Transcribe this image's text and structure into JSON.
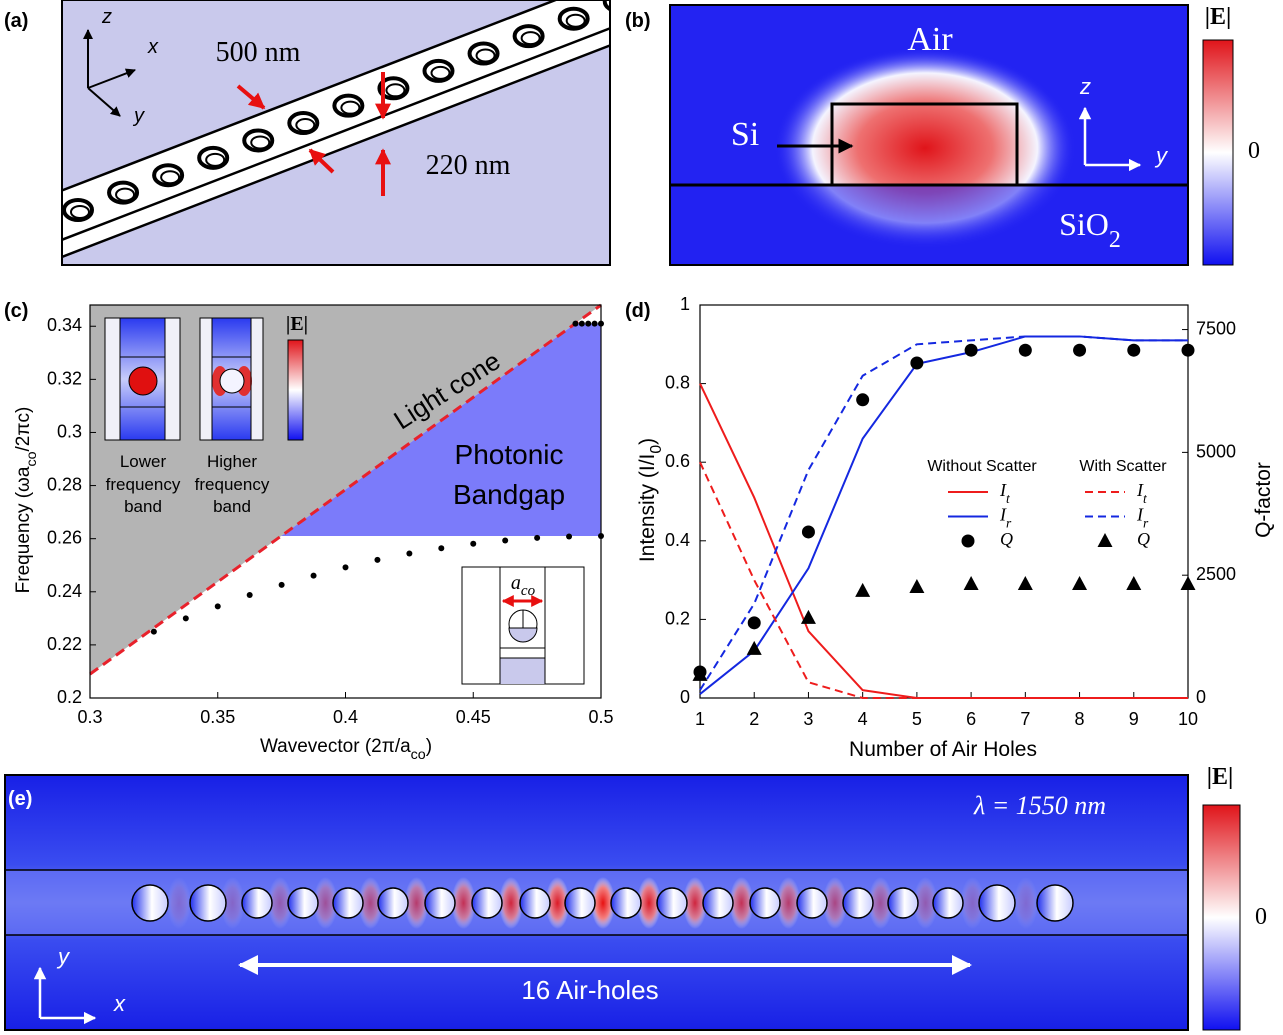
{
  "panel_labels": [
    "(a)",
    "(b)",
    "(c)",
    "(d)",
    "(e)"
  ],
  "panel_a": {
    "axes": [
      "z",
      "x",
      "y"
    ],
    "width_label": "500 nm",
    "height_label": "220 nm"
  },
  "panel_b": {
    "air": "Air",
    "si": "Si",
    "substrate": "SiO_{2}",
    "colorbar_title": "|E|",
    "colorbar_mid": "0",
    "axes": [
      "z",
      "y"
    ]
  },
  "chart_data": [
    {
      "type": "band-diagram",
      "xlabel": "Wavevector (2π/a_{co})",
      "ylabel": "Frequency (ωa_{co}/2πc)",
      "xlim": [
        0.3,
        0.5
      ],
      "ylim": [
        0.2,
        0.348
      ],
      "xticks": [
        0.3,
        0.35,
        0.4,
        0.45,
        0.5
      ],
      "yticks": [
        0.2,
        0.22,
        0.24,
        0.26,
        0.28,
        0.3,
        0.32,
        0.34
      ],
      "light_cone": {
        "label": "Light cone",
        "color": "#e8212b",
        "x": [
          0.3,
          0.5
        ],
        "values": [
          0.209,
          0.348
        ]
      },
      "bands": [
        {
          "color": "#000000",
          "x": [
            0.325,
            0.3375,
            0.35,
            0.3625,
            0.375,
            0.3875,
            0.4,
            0.4125,
            0.425,
            0.4375,
            0.45,
            0.4625,
            0.475,
            0.4875,
            0.5
          ],
          "values": [
            0.225,
            0.23,
            0.2345,
            0.2388,
            0.2426,
            0.2461,
            0.2492,
            0.252,
            0.2544,
            0.2564,
            0.2581,
            0.2593,
            0.2603,
            0.2608,
            0.261
          ]
        },
        {
          "color": "#000000",
          "x": [
            0.49,
            0.4925,
            0.495,
            0.4975,
            0.5
          ],
          "values": [
            0.341,
            0.341,
            0.341,
            0.341,
            0.341
          ]
        }
      ],
      "bandgap": {
        "label": [
          "Photonic",
          "Bandgap"
        ],
        "color": "#7b7bfa",
        "range": [
          0.261,
          0.341
        ]
      }
    },
    {
      "type": "line",
      "xlabel": "Number of Air Holes",
      "ylabel": "Intensity (I/I_{0})",
      "y2label": "Q-factor",
      "x": [
        1,
        2,
        3,
        4,
        5,
        6,
        7,
        8,
        9,
        10
      ],
      "xlim": [
        1,
        10
      ],
      "ylim": [
        0,
        1
      ],
      "y2lim": [
        0,
        8000
      ],
      "xticks": [
        1,
        2,
        3,
        4,
        5,
        6,
        7,
        8,
        9,
        10
      ],
      "yticks": [
        0,
        0.2,
        0.4,
        0.6,
        0.8,
        1
      ],
      "y2ticks": [
        0,
        2500,
        5000,
        7500
      ],
      "legend_groups": [
        "Without Scatter",
        "With Scatter"
      ],
      "series": [
        {
          "name": "I_{t}",
          "color": "#ee1c1c",
          "style": "solid",
          "values": [
            0.8,
            0.51,
            0.17,
            0.02,
            0,
            0,
            0,
            0,
            0,
            0
          ]
        },
        {
          "name": "I_{r}",
          "color": "#1428e0",
          "style": "solid",
          "values": [
            0.01,
            0.12,
            0.33,
            0.66,
            0.85,
            0.88,
            0.92,
            0.92,
            0.91,
            0.91
          ]
        },
        {
          "name": "Q",
          "color": "#000000",
          "marker": "circle",
          "axis": "y2",
          "values": [
            530,
            1530,
            3380,
            6070,
            6820,
            7080,
            7080,
            7080,
            7080,
            7080
          ]
        },
        {
          "name": "I_{t}",
          "color": "#ee1c1c",
          "style": "dashed",
          "values": [
            0.6,
            0.3,
            0.04,
            0,
            0,
            0,
            0,
            0,
            0,
            0
          ]
        },
        {
          "name": "I_{r}",
          "color": "#1428e0",
          "style": "dashed",
          "values": [
            0.02,
            0.24,
            0.58,
            0.82,
            0.9,
            0.91,
            0.92,
            0.92,
            0.91,
            0.91
          ]
        },
        {
          "name": "Q",
          "color": "#000000",
          "marker": "triangle",
          "axis": "y2",
          "values": [
            470,
            1000,
            1630,
            2180,
            2260,
            2320,
            2320,
            2320,
            2320,
            2320
          ]
        }
      ]
    }
  ],
  "panel_c_insets": {
    "colorbar_title": "|E|",
    "lower": [
      "Lower",
      "frequency",
      "band"
    ],
    "higher": [
      "Higher",
      "frequency",
      "band"
    ],
    "lattice_label": "a_{co}"
  },
  "panel_e": {
    "wavelength": "λ = 1550 nm",
    "holes_label": "16 Air-holes",
    "colorbar_title": "|E|",
    "colorbar_mid": "0",
    "axes": [
      "y",
      "x"
    ]
  }
}
